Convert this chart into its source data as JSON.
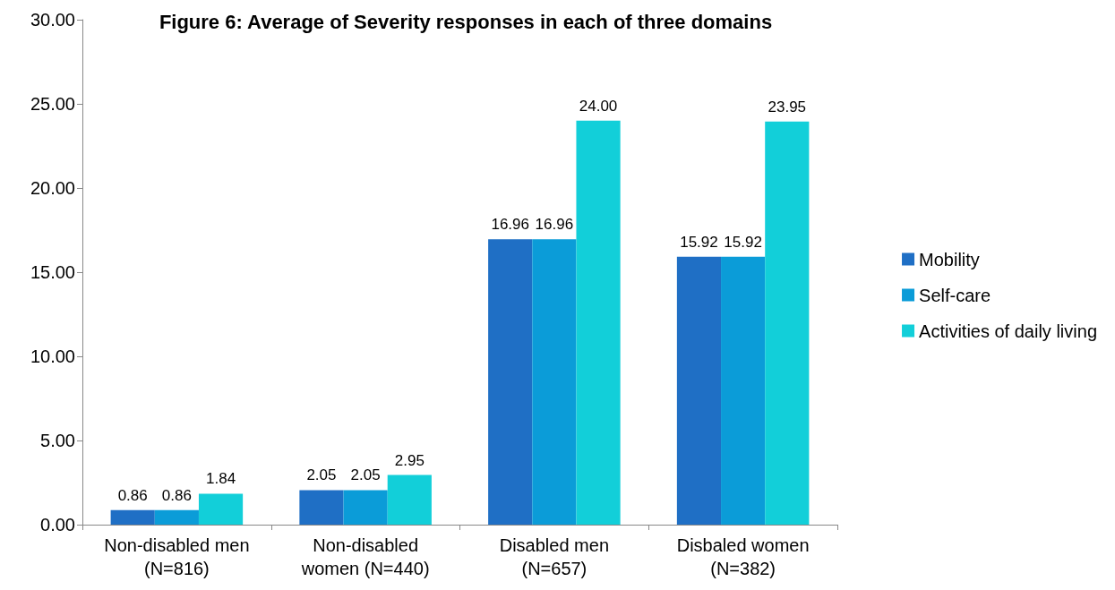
{
  "chart_data": {
    "type": "bar",
    "title": "Figure 6: Average of Severity responses in each of three domains",
    "categories": [
      "Non-disabled men\n(N=816)",
      "Non-disabled\nwomen (N=440)",
      "Disabled men\n(N=657)",
      "Disbaled women\n(N=382)"
    ],
    "series": [
      {
        "name": "Mobility",
        "color": "#1f6fc5",
        "values": [
          0.86,
          2.05,
          16.96,
          15.92
        ],
        "value_labels": [
          "0.86",
          "2.05",
          "16.96",
          "15.92"
        ]
      },
      {
        "name": "Self-care",
        "color": "#0b9cd8",
        "values": [
          0.86,
          2.05,
          16.96,
          15.92
        ],
        "value_labels": [
          "0.86",
          "2.05",
          "16.96",
          "15.92"
        ]
      },
      {
        "name": "Activities of daily living",
        "color": "#12cfd9",
        "values": [
          1.84,
          2.95,
          24.0,
          23.95
        ],
        "value_labels": [
          "1.84",
          "2.95",
          "24.00",
          "23.95"
        ]
      }
    ],
    "ylim": [
      0,
      30
    ],
    "yticks": [
      {
        "value": 0,
        "label": "0.00"
      },
      {
        "value": 5,
        "label": "5.00"
      },
      {
        "value": 10,
        "label": "10.00"
      },
      {
        "value": 15,
        "label": "15.00"
      },
      {
        "value": 20,
        "label": "20.00"
      },
      {
        "value": 25,
        "label": "25.00"
      },
      {
        "value": 30,
        "label": "30.00"
      }
    ],
    "grid": false,
    "legend": "right"
  }
}
